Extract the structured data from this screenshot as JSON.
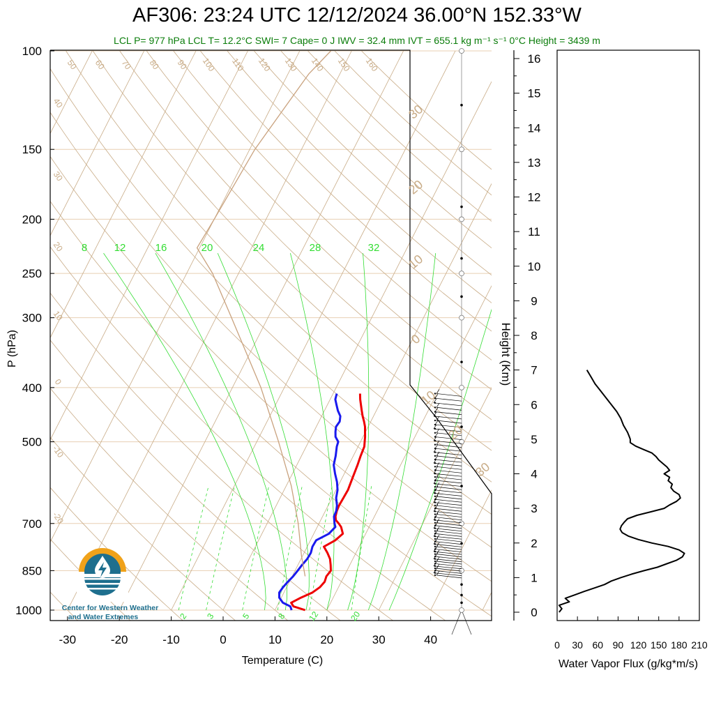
{
  "title": "AF306: 23:24 UTC 12/12/2024  36.00°N 152.33°W",
  "subtitle": "LCL P= 977 hPa  LCL T= 12.2°C  SWI= 7  Cape= 0 J  IWV = 32.4 mm  IVT = 655.1 kg m⁻¹ s⁻¹  0°C Height = 3439 m",
  "logo": {
    "line1": "Center for Western Weather",
    "line2": "and Water Extremes"
  },
  "chart_data": [
    {
      "type": "line",
      "subtype": "skew-T log-P sounding",
      "xlabel": "Temperature (C)",
      "ylabel": "P (hPa)",
      "xlim": [
        -34,
        52
      ],
      "ylim": [
        1000,
        100
      ],
      "y_scale": "log",
      "x_ticks": [
        -30,
        -20,
        -10,
        0,
        10,
        20,
        30,
        40
      ],
      "y_ticks": [
        100,
        150,
        200,
        250,
        300,
        400,
        500,
        700,
        850,
        1000
      ],
      "dry_adiabat_labels": [
        50,
        60,
        70,
        80,
        90,
        100,
        110,
        120,
        130,
        140,
        150,
        160
      ],
      "isotherm_labels": [
        40,
        30,
        20,
        10,
        0,
        -10,
        -20
      ],
      "upper_axis_labels": [
        30,
        20,
        10,
        0
      ],
      "right_labels": [
        10,
        20,
        30
      ],
      "mixing_ratio_labels_top": [
        8,
        12,
        16,
        20,
        24,
        28,
        32
      ],
      "mixing_ratio_labels_bottom": [
        2,
        3,
        5,
        8,
        12,
        20
      ],
      "colors": {
        "temperature": "#ee0000",
        "dewpoint": "#1a1aee",
        "adiabat": "#c8ab86",
        "moist": "#33dd33",
        "parcel": "#c9a27e",
        "isobar": "#e8cfb2"
      },
      "series": [
        {
          "name": "",
          "pressure": [
            1000,
            985,
            970,
            950,
            930,
            910,
            890,
            870,
            850,
            830,
            810,
            790,
            770,
            750,
            730,
            710,
            700,
            690,
            680,
            665,
            650,
            630,
            610,
            590,
            570,
            550,
            530,
            510,
            500,
            490,
            480,
            470,
            460,
            450,
            440,
            430,
            420,
            410
          ],
          "values": [
            15.8,
            13.2,
            12.4,
            13.8,
            15.5,
            16.4,
            16.8,
            16.6,
            16.9,
            16.3,
            15.6,
            14.5,
            13.2,
            14.8,
            15.6,
            14.6,
            13.8,
            12.9,
            12.5,
            12.2,
            12.1,
            12.2,
            12.3,
            12.1,
            11.9,
            11.7,
            11.4,
            11.2,
            10.8,
            10.4,
            9.9,
            9.4,
            8.7,
            7.9,
            7.2,
            6.5,
            5.8,
            5.2
          ]
        },
        {
          "name": "",
          "pressure": [
            1000,
            985,
            970,
            950,
            930,
            910,
            890,
            870,
            850,
            830,
            810,
            790,
            770,
            750,
            730,
            710,
            700,
            690,
            680,
            665,
            650,
            630,
            610,
            590,
            570,
            550,
            530,
            510,
            500,
            490,
            480,
            470,
            460,
            450,
            440,
            430,
            420,
            410
          ],
          "values": [
            13.2,
            12.6,
            10.8,
            9.6,
            9.1,
            9.3,
            9.7,
            10.2,
            10.5,
            10.8,
            11.2,
            11.3,
            11.0,
            11.1,
            12.9,
            13.5,
            13.0,
            12.6,
            12.2,
            12.1,
            11.7,
            10.8,
            10.3,
            9.4,
            8.2,
            7.1,
            6.6,
            5.9,
            5.7,
            4.7,
            4.2,
            3.8,
            4.0,
            3.6,
            2.6,
            1.8,
            1.0,
            0.7
          ]
        },
        {
          "name": "",
          "pressure": [
            870,
            800,
            700,
            600,
            500,
            400,
            300,
            250,
            225,
            200,
            150,
            110,
            100
          ],
          "values": [
            12.5,
            9.8,
            6.0,
            1.0,
            -5.8,
            -14.5,
            -27.0,
            -35.0,
            -40.5,
            -40.0,
            -39.0,
            -36.0,
            -34.0
          ]
        }
      ]
    },
    {
      "type": "line",
      "xlabel": "Water Vapor Flux (g/kg*m/s)",
      "ylabel": "Height (Km)",
      "xlim": [
        0,
        210
      ],
      "ylim": [
        -0.2,
        16.4
      ],
      "x_ticks": [
        0,
        30,
        60,
        90,
        120,
        150,
        180,
        210
      ],
      "y_ticks": [
        0,
        1,
        2,
        3,
        4,
        5,
        6,
        7,
        8,
        9,
        10,
        11,
        12,
        13,
        14,
        15,
        16
      ],
      "series": [
        {
          "name": "",
          "height": [
            0.0,
            0.1,
            0.2,
            0.3,
            0.4,
            0.5,
            0.6,
            0.7,
            0.8,
            0.9,
            1.0,
            1.1,
            1.2,
            1.3,
            1.4,
            1.5,
            1.6,
            1.7,
            1.8,
            1.9,
            2.0,
            2.1,
            2.2,
            2.3,
            2.4,
            2.5,
            2.6,
            2.7,
            2.8,
            2.9,
            3.0,
            3.1,
            3.2,
            3.3,
            3.4,
            3.5,
            3.6,
            3.7,
            3.8,
            3.9,
            4.0,
            4.1,
            4.2,
            4.3,
            4.4,
            4.5,
            4.6,
            4.7,
            4.8,
            4.9,
            5.0,
            5.1,
            5.2,
            5.4,
            5.6,
            5.8,
            6.0,
            6.2,
            6.4,
            6.6,
            6.8,
            7.0
          ],
          "values": [
            3,
            7,
            3,
            18,
            12,
            26,
            40,
            55,
            70,
            80,
            94,
            110,
            128,
            148,
            162,
            176,
            185,
            188,
            180,
            164,
            140,
            120,
            105,
            96,
            93,
            95,
            99,
            104,
            118,
            138,
            158,
            166,
            176,
            182,
            180,
            172,
            168,
            170,
            164,
            166,
            158,
            166,
            162,
            156,
            150,
            146,
            140,
            128,
            116,
            108,
            108,
            106,
            104,
            98,
            94,
            88,
            80,
            72,
            64,
            56,
            50,
            44
          ]
        }
      ]
    }
  ]
}
